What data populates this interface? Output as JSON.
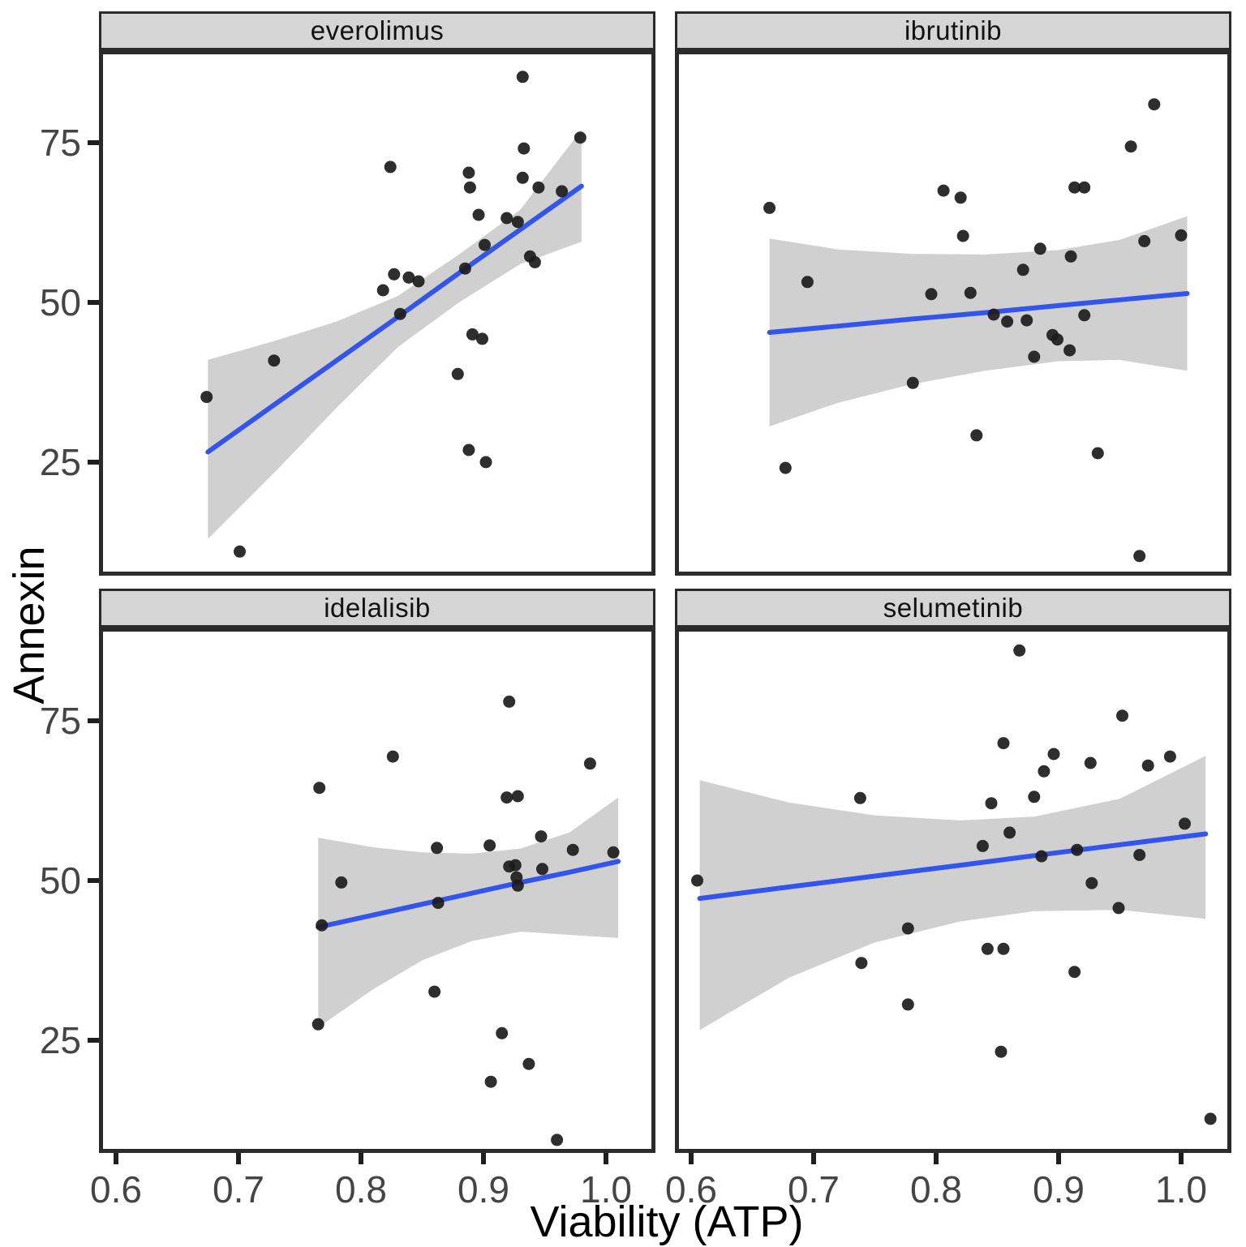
{
  "axes": {
    "x_title": "Viability (ATP)",
    "y_title": "Annexin",
    "x_tick_labels": [
      "0.6",
      "0.7",
      "0.8",
      "0.9",
      "1.0"
    ],
    "y_tick_labels": [
      "25",
      "50",
      "75"
    ]
  },
  "style": {
    "point_color": "#1c1c1c",
    "smooth_line_color": "#3355ec",
    "band_color": "#d0d0d0",
    "strip_bg": "#d5d5d5",
    "panel_border": "#2b2b2b",
    "tick_color": "#1f1f1f",
    "tick_label_color": "#454545"
  },
  "chart_data": {
    "type": "scatter",
    "xlabel": "Viability (ATP)",
    "ylabel": "Annexin",
    "x_ticks": [
      0.6,
      0.7,
      0.8,
      0.9,
      1.0
    ],
    "y_ticks": [
      25,
      50,
      75
    ],
    "x_range": [
      0.586,
      1.04
    ],
    "y_range": [
      7.2,
      89.5
    ],
    "grid": false,
    "legend": "none",
    "facets": [
      {
        "facet": "everolimus",
        "points": [
          [
            0.932,
            85.3
          ],
          [
            0.979,
            75.8
          ],
          [
            0.933,
            74.1
          ],
          [
            0.824,
            71.2
          ],
          [
            0.888,
            70.3
          ],
          [
            0.889,
            68.0
          ],
          [
            0.932,
            69.5
          ],
          [
            0.945,
            68.0
          ],
          [
            0.964,
            67.4
          ],
          [
            0.896,
            63.7
          ],
          [
            0.919,
            63.2
          ],
          [
            0.928,
            62.6
          ],
          [
            0.901,
            59.0
          ],
          [
            0.938,
            57.2
          ],
          [
            0.942,
            56.3
          ],
          [
            0.885,
            55.3
          ],
          [
            0.827,
            54.4
          ],
          [
            0.839,
            53.9
          ],
          [
            0.847,
            53.3
          ],
          [
            0.818,
            51.9
          ],
          [
            0.832,
            48.2
          ],
          [
            0.891,
            45.0
          ],
          [
            0.899,
            44.3
          ],
          [
            0.879,
            38.8
          ],
          [
            0.729,
            40.9
          ],
          [
            0.674,
            35.2
          ],
          [
            0.888,
            26.9
          ],
          [
            0.902,
            25.0
          ],
          [
            0.701,
            11.0
          ]
        ],
        "smooth": {
          "x": [
            0.675,
            0.73,
            0.78,
            0.83,
            0.88,
            0.93,
            0.98
          ],
          "line": [
            26.6,
            34.1,
            40.9,
            47.7,
            54.6,
            61.4,
            68.2
          ],
          "upper": [
            41.0,
            44.0,
            47.0,
            51.0,
            57.5,
            64.5,
            77.0
          ],
          "lower": [
            13.0,
            23.5,
            33.5,
            43.0,
            50.0,
            56.0,
            59.5
          ]
        }
      },
      {
        "facet": "ibrutinib",
        "points": [
          [
            0.664,
            64.8
          ],
          [
            0.695,
            53.2
          ],
          [
            0.677,
            24.1
          ],
          [
            0.806,
            67.5
          ],
          [
            0.82,
            66.4
          ],
          [
            0.913,
            68.0
          ],
          [
            0.921,
            68.0
          ],
          [
            0.959,
            74.4
          ],
          [
            0.978,
            81.0
          ],
          [
            0.966,
            10.3
          ],
          [
            0.822,
            60.4
          ],
          [
            0.871,
            55.1
          ],
          [
            0.885,
            58.4
          ],
          [
            0.91,
            57.2
          ],
          [
            0.796,
            51.3
          ],
          [
            0.828,
            51.5
          ],
          [
            0.847,
            48.1
          ],
          [
            0.858,
            47.0
          ],
          [
            0.874,
            47.2
          ],
          [
            0.921,
            48.0
          ],
          [
            0.895,
            44.9
          ],
          [
            0.899,
            44.2
          ],
          [
            0.88,
            41.5
          ],
          [
            0.909,
            42.5
          ],
          [
            0.781,
            37.4
          ],
          [
            0.833,
            29.2
          ],
          [
            0.932,
            26.4
          ],
          [
            0.97,
            59.6
          ],
          [
            1.0,
            60.5
          ]
        ],
        "smooth": {
          "x": [
            0.664,
            0.72,
            0.78,
            0.84,
            0.9,
            0.95,
            1.005
          ],
          "line": [
            45.3,
            46.3,
            47.4,
            48.4,
            49.5,
            50.4,
            51.4
          ],
          "upper": [
            60.0,
            58.3,
            57.6,
            57.5,
            58.2,
            59.8,
            63.5
          ],
          "lower": [
            30.6,
            34.3,
            37.2,
            39.3,
            40.8,
            41.0,
            39.3
          ]
        }
      },
      {
        "facet": "idelalisib",
        "points": [
          [
            0.921,
            78.0
          ],
          [
            0.826,
            69.4
          ],
          [
            0.766,
            64.5
          ],
          [
            0.919,
            63.0
          ],
          [
            0.928,
            63.2
          ],
          [
            0.987,
            68.3
          ],
          [
            0.862,
            55.1
          ],
          [
            0.905,
            55.5
          ],
          [
            0.947,
            56.9
          ],
          [
            0.921,
            52.2
          ],
          [
            0.926,
            52.4
          ],
          [
            0.927,
            50.5
          ],
          [
            0.928,
            49.2
          ],
          [
            0.948,
            51.8
          ],
          [
            0.973,
            54.8
          ],
          [
            1.006,
            54.4
          ],
          [
            0.863,
            46.5
          ],
          [
            0.784,
            49.7
          ],
          [
            0.768,
            43.0
          ],
          [
            0.86,
            32.6
          ],
          [
            0.765,
            27.5
          ],
          [
            0.915,
            26.1
          ],
          [
            0.937,
            21.3
          ],
          [
            0.906,
            18.5
          ],
          [
            0.96,
            9.4
          ]
        ],
        "smooth": {
          "x": [
            0.765,
            0.81,
            0.85,
            0.89,
            0.93,
            0.97,
            1.01
          ],
          "line": [
            42.7,
            44.6,
            46.3,
            48.0,
            49.7,
            51.3,
            53.0
          ],
          "upper": [
            56.7,
            55.2,
            54.4,
            54.2,
            55.0,
            57.5,
            63.0
          ],
          "lower": [
            27.0,
            33.0,
            37.5,
            40.5,
            42.0,
            41.5,
            41.0
          ]
        }
      },
      {
        "facet": "selumetinib",
        "points": [
          [
            0.868,
            86.0
          ],
          [
            0.952,
            75.8
          ],
          [
            0.855,
            71.5
          ],
          [
            0.896,
            69.8
          ],
          [
            0.888,
            67.1
          ],
          [
            0.926,
            68.4
          ],
          [
            0.973,
            68.0
          ],
          [
            0.991,
            69.4
          ],
          [
            0.738,
            62.9
          ],
          [
            0.845,
            62.1
          ],
          [
            0.88,
            63.1
          ],
          [
            0.86,
            57.5
          ],
          [
            0.838,
            55.4
          ],
          [
            0.886,
            53.8
          ],
          [
            0.915,
            54.8
          ],
          [
            0.966,
            54.0
          ],
          [
            1.003,
            58.9
          ],
          [
            0.927,
            49.6
          ],
          [
            0.949,
            45.7
          ],
          [
            0.605,
            50.0
          ],
          [
            0.777,
            42.5
          ],
          [
            0.842,
            39.3
          ],
          [
            0.855,
            39.3
          ],
          [
            0.739,
            37.1
          ],
          [
            0.913,
            35.7
          ],
          [
            0.777,
            30.6
          ],
          [
            0.853,
            23.2
          ],
          [
            1.024,
            12.7
          ]
        ],
        "smooth": {
          "x": [
            0.607,
            0.68,
            0.75,
            0.82,
            0.88,
            0.95,
            1.02
          ],
          "line": [
            47.2,
            49.0,
            50.7,
            52.4,
            53.9,
            55.6,
            57.3
          ],
          "upper": [
            65.7,
            62.2,
            60.2,
            59.4,
            60.0,
            62.8,
            69.5
          ],
          "lower": [
            26.6,
            34.8,
            40.3,
            43.6,
            45.2,
            45.4,
            44.0
          ]
        }
      }
    ]
  }
}
